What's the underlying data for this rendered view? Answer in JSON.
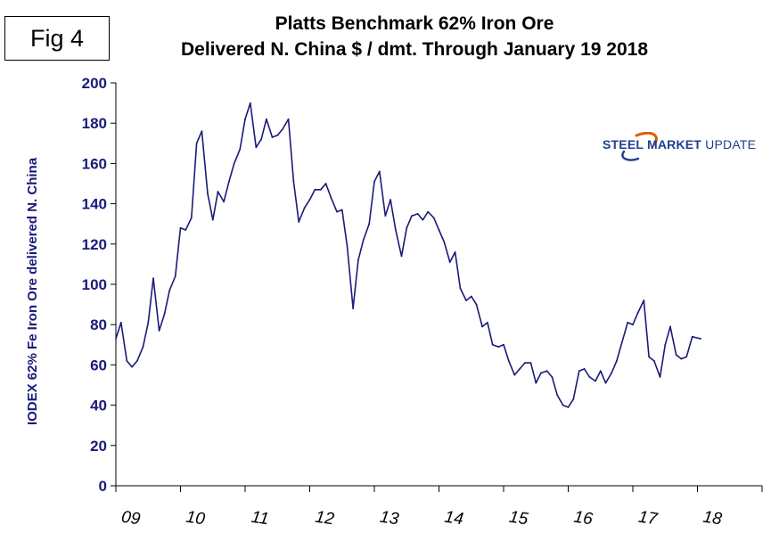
{
  "fig_label": "Fig 4",
  "logo": {
    "strong": "STEEL",
    "mid": "MARKET",
    "rest": "UPDATE",
    "brand_color": "#1f3f8f",
    "accent_color": "#e05a00"
  },
  "colors": {
    "line": "#1a1a7a",
    "axis_text": "#1a1a7a"
  },
  "chart_data": {
    "type": "line",
    "title": "Platts Benchmark 62% Iron Ore",
    "subtitle": "Delivered N. China $ / dmt. Through January 19 2018",
    "xlabel": "",
    "ylabel": "IODEX 62% Fe Iron Ore delivered N. China",
    "ylim": [
      0,
      200
    ],
    "yticks": [
      0,
      20,
      40,
      60,
      80,
      100,
      120,
      140,
      160,
      180,
      200
    ],
    "xlim": [
      2009,
      2019
    ],
    "xtick_labels": [
      "09",
      "10",
      "11",
      "12",
      "13",
      "14",
      "15",
      "16",
      "17",
      "18"
    ],
    "grid": false,
    "series": [
      {
        "name": "IODEX 62% Fe",
        "x": [
          2009.0,
          2009.08,
          2009.17,
          2009.25,
          2009.33,
          2009.42,
          2009.5,
          2009.58,
          2009.67,
          2009.75,
          2009.83,
          2009.92,
          2010.0,
          2010.08,
          2010.17,
          2010.25,
          2010.33,
          2010.42,
          2010.5,
          2010.58,
          2010.67,
          2010.75,
          2010.83,
          2010.92,
          2011.0,
          2011.08,
          2011.17,
          2011.25,
          2011.33,
          2011.42,
          2011.5,
          2011.58,
          2011.67,
          2011.75,
          2011.83,
          2011.92,
          2012.0,
          2012.08,
          2012.17,
          2012.25,
          2012.33,
          2012.42,
          2012.5,
          2012.58,
          2012.67,
          2012.75,
          2012.83,
          2012.92,
          2013.0,
          2013.08,
          2013.17,
          2013.25,
          2013.33,
          2013.42,
          2013.5,
          2013.58,
          2013.67,
          2013.75,
          2013.83,
          2013.92,
          2014.0,
          2014.08,
          2014.17,
          2014.25,
          2014.33,
          2014.42,
          2014.5,
          2014.58,
          2014.67,
          2014.75,
          2014.83,
          2014.92,
          2015.0,
          2015.08,
          2015.17,
          2015.25,
          2015.33,
          2015.42,
          2015.5,
          2015.58,
          2015.67,
          2015.75,
          2015.83,
          2015.92,
          2016.0,
          2016.08,
          2016.17,
          2016.25,
          2016.33,
          2016.42,
          2016.5,
          2016.58,
          2016.67,
          2016.75,
          2016.83,
          2016.92,
          2017.0,
          2017.08,
          2017.17,
          2017.25,
          2017.33,
          2017.42,
          2017.5,
          2017.58,
          2017.67,
          2017.75,
          2017.83,
          2017.92,
          2018.05
        ],
        "values": [
          73,
          81,
          62,
          59,
          62,
          69,
          81,
          103,
          77,
          85,
          97,
          104,
          128,
          127,
          133,
          170,
          176,
          145,
          132,
          146,
          141,
          151,
          160,
          167,
          182,
          190,
          168,
          172,
          182,
          173,
          174,
          177,
          182,
          151,
          131,
          138,
          142,
          147,
          147,
          150,
          143,
          136,
          137,
          119,
          88,
          112,
          122,
          130,
          151,
          156,
          134,
          142,
          127,
          114,
          128,
          134,
          135,
          132,
          136,
          133,
          127,
          121,
          111,
          116,
          98,
          92,
          94,
          90,
          79,
          81,
          70,
          69,
          70,
          62,
          55,
          58,
          61,
          61,
          51,
          56,
          57,
          54,
          45,
          40,
          39,
          43,
          57,
          58,
          54,
          52,
          57,
          51,
          56,
          62,
          71,
          81,
          80,
          86,
          92,
          64,
          62,
          54,
          70,
          79,
          65,
          63,
          64,
          74,
          73
        ]
      }
    ]
  }
}
